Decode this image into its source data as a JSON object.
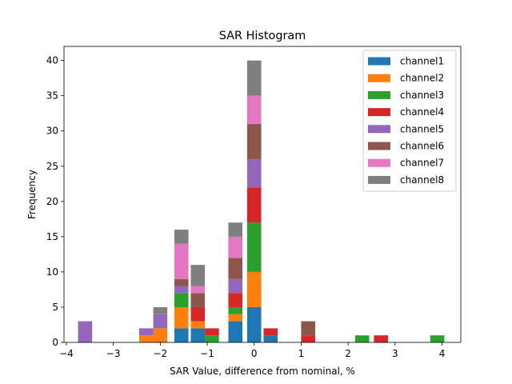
{
  "chart_data": {
    "type": "bar",
    "stacked": true,
    "title": "SAR Histogram",
    "xlabel": "SAR Value, difference from nominal, %",
    "ylabel": "Frequency",
    "xlim": [
      -4.05,
      4.4
    ],
    "ylim": [
      0,
      42
    ],
    "xticks": [
      -4,
      -3,
      -2,
      -1,
      0,
      1,
      2,
      3,
      4
    ],
    "xtick_labels": [
      "−4",
      "−3",
      "−2",
      "−1",
      "0",
      "1",
      "2",
      "3",
      "4"
    ],
    "yticks": [
      0,
      5,
      10,
      15,
      20,
      25,
      30,
      35,
      40
    ],
    "ytick_labels": [
      "0",
      "5",
      "10",
      "15",
      "20",
      "25",
      "30",
      "35",
      "40"
    ],
    "bin_width": 0.3,
    "x": [
      -3.6,
      -2.3,
      -2.0,
      -1.55,
      -1.2,
      -0.9,
      -0.4,
      0.0,
      0.35,
      1.15,
      2.3,
      2.7,
      3.9
    ],
    "series": [
      {
        "name": "channel1",
        "color": "#1f77b4",
        "values": [
          0,
          0,
          0,
          2,
          2,
          0,
          3,
          5,
          1,
          0,
          0,
          0,
          0
        ]
      },
      {
        "name": "channel2",
        "color": "#ff7f0e",
        "values": [
          0,
          1,
          2,
          3,
          1,
          0,
          1,
          5,
          0,
          0,
          0,
          0,
          0
        ]
      },
      {
        "name": "channel3",
        "color": "#2ca02c",
        "values": [
          0,
          0,
          0,
          2,
          0,
          1,
          1,
          7,
          0,
          0,
          1,
          0,
          1
        ]
      },
      {
        "name": "channel4",
        "color": "#d62728",
        "values": [
          0,
          0,
          0,
          0,
          2,
          1,
          2,
          5,
          1,
          1,
          0,
          1,
          0
        ]
      },
      {
        "name": "channel5",
        "color": "#9467bd",
        "values": [
          3,
          1,
          2,
          1,
          0,
          0,
          2,
          4,
          0,
          0,
          0,
          0,
          0
        ]
      },
      {
        "name": "channel6",
        "color": "#8c564b",
        "values": [
          0,
          0,
          0,
          1,
          2,
          0,
          3,
          5,
          0,
          2,
          0,
          0,
          0
        ]
      },
      {
        "name": "channel7",
        "color": "#e377c2",
        "values": [
          0,
          0,
          0,
          5,
          1,
          0,
          3,
          4,
          0,
          0,
          0,
          0,
          0
        ]
      },
      {
        "name": "channel8",
        "color": "#7f7f7f",
        "values": [
          0,
          0,
          1,
          2,
          3,
          0,
          2,
          5,
          0,
          0,
          0,
          0,
          0
        ]
      }
    ],
    "legend_position": "top-right"
  }
}
